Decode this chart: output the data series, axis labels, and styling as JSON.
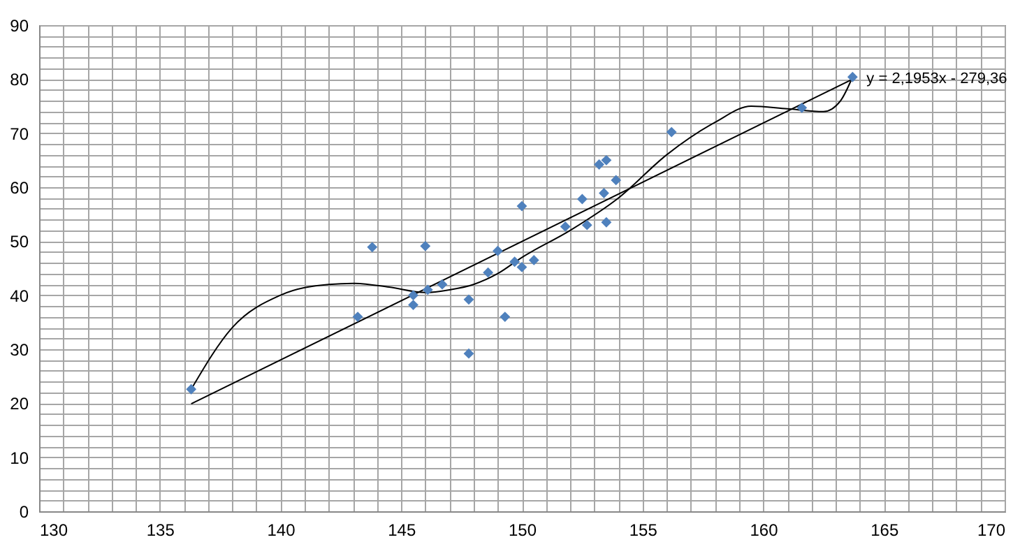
{
  "chart_data": {
    "type": "scatter",
    "marker": "diamond",
    "grid": true,
    "x": [
      136.3,
      143.2,
      143.8,
      145.5,
      145.5,
      146.0,
      146.1,
      146.7,
      147.8,
      147.8,
      148.6,
      149.0,
      149.3,
      149.7,
      150.0,
      150.0,
      150.5,
      151.8,
      152.5,
      152.7,
      153.2,
      153.5,
      153.4,
      153.5,
      153.9,
      156.2,
      161.6,
      163.7
    ],
    "series": [
      {
        "color": "#4f81bd",
        "values": [
          22.6,
          36.0,
          48.9,
          40.0,
          38.2,
          49.1,
          41.0,
          42.0,
          39.2,
          29.2,
          44.2,
          48.2,
          36.0,
          46.2,
          45.2,
          56.5,
          46.5,
          52.7,
          57.8,
          53.0,
          64.2,
          65.0,
          58.9,
          53.5,
          61.3,
          70.2,
          74.7,
          80.4
        ]
      },
      {
        "type": "line",
        "marker": "none",
        "color": "#000000",
        "x": [
          136.3,
          138,
          140,
          142,
          143,
          144.5,
          146,
          147,
          148,
          149,
          150,
          152,
          154,
          156,
          158,
          159.5,
          161,
          162.5,
          163.2,
          163.7
        ],
        "values": [
          22.6,
          34,
          40,
          42,
          42.2,
          41.5,
          40.5,
          41,
          42,
          44,
          47,
          52,
          58,
          66,
          72,
          75,
          74.5,
          74,
          76,
          80.4
        ]
      },
      {
        "type": "line",
        "marker": "none",
        "color": "#000000",
        "x": [
          136.3,
          163.7
        ],
        "values": [
          19.9,
          80.0
        ]
      }
    ],
    "annotations": [
      {
        "text": "y = 2,1953x - 279,36",
        "x": 163.7,
        "y": 80.0
      }
    ],
    "xlim": [
      130,
      170
    ],
    "ylim": [
      0,
      90
    ],
    "xticks": [
      130,
      {
        "value": 131,
        "label": null
      },
      {
        "value": 132,
        "label": null
      },
      {
        "value": 133,
        "label": null
      },
      {
        "value": 134,
        "label": null
      },
      135,
      {
        "value": 136,
        "label": null
      },
      {
        "value": 137,
        "label": null
      },
      {
        "value": 138,
        "label": null
      },
      {
        "value": 139,
        "label": null
      },
      140,
      {
        "value": 141,
        "label": null
      },
      {
        "value": 142,
        "label": null
      },
      {
        "value": 143,
        "label": null
      },
      {
        "value": 144,
        "label": null
      },
      145,
      {
        "value": 146,
        "label": null
      },
      {
        "value": 147,
        "label": null
      },
      {
        "value": 148,
        "label": null
      },
      {
        "value": 149,
        "label": null
      },
      150,
      {
        "value": 151,
        "label": null
      },
      {
        "value": 152,
        "label": null
      },
      {
        "value": 153,
        "label": null
      },
      {
        "value": 154,
        "label": null
      },
      155,
      {
        "value": 156,
        "label": null
      },
      {
        "value": 157,
        "label": null
      },
      {
        "value": 158,
        "label": null
      },
      {
        "value": 159,
        "label": null
      },
      160,
      {
        "value": 161,
        "label": null
      },
      {
        "value": 162,
        "label": null
      },
      {
        "value": 163,
        "label": null
      },
      {
        "value": 164,
        "label": null
      },
      165,
      {
        "value": 166,
        "label": null
      },
      {
        "value": 167,
        "label": null
      },
      {
        "value": 168,
        "label": null
      },
      {
        "value": 169,
        "label": null
      },
      170
    ],
    "yticks": [
      0,
      {
        "value": 2,
        "label": null
      },
      {
        "value": 4,
        "label": null
      },
      {
        "value": 6,
        "label": null
      },
      {
        "value": 8,
        "label": null
      },
      10,
      {
        "value": 12,
        "label": null
      },
      {
        "value": 14,
        "label": null
      },
      {
        "value": 16,
        "label": null
      },
      {
        "value": 18,
        "label": null
      },
      20,
      {
        "value": 22,
        "label": null
      },
      {
        "value": 24,
        "label": null
      },
      {
        "value": 26,
        "label": null
      },
      {
        "value": 28,
        "label": null
      },
      30,
      {
        "value": 32,
        "label": null
      },
      {
        "value": 34,
        "label": null
      },
      {
        "value": 36,
        "label": null
      },
      {
        "value": 38,
        "label": null
      },
      40,
      {
        "value": 42,
        "label": null
      },
      {
        "value": 44,
        "label": null
      },
      {
        "value": 46,
        "label": null
      },
      {
        "value": 48,
        "label": null
      },
      50,
      {
        "value": 52,
        "label": null
      },
      {
        "value": 54,
        "label": null
      },
      {
        "value": 56,
        "label": null
      },
      {
        "value": 58,
        "label": null
      },
      60,
      {
        "value": 62,
        "label": null
      },
      {
        "value": 64,
        "label": null
      },
      {
        "value": 66,
        "label": null
      },
      {
        "value": 68,
        "label": null
      },
      70,
      {
        "value": 72,
        "label": null
      },
      {
        "value": 74,
        "label": null
      },
      {
        "value": 76,
        "label": null
      },
      {
        "value": 78,
        "label": null
      },
      80,
      {
        "value": 82,
        "label": null
      },
      {
        "value": 84,
        "label": null
      },
      {
        "value": 86,
        "label": null
      },
      {
        "value": 88,
        "label": null
      },
      90
    ]
  }
}
